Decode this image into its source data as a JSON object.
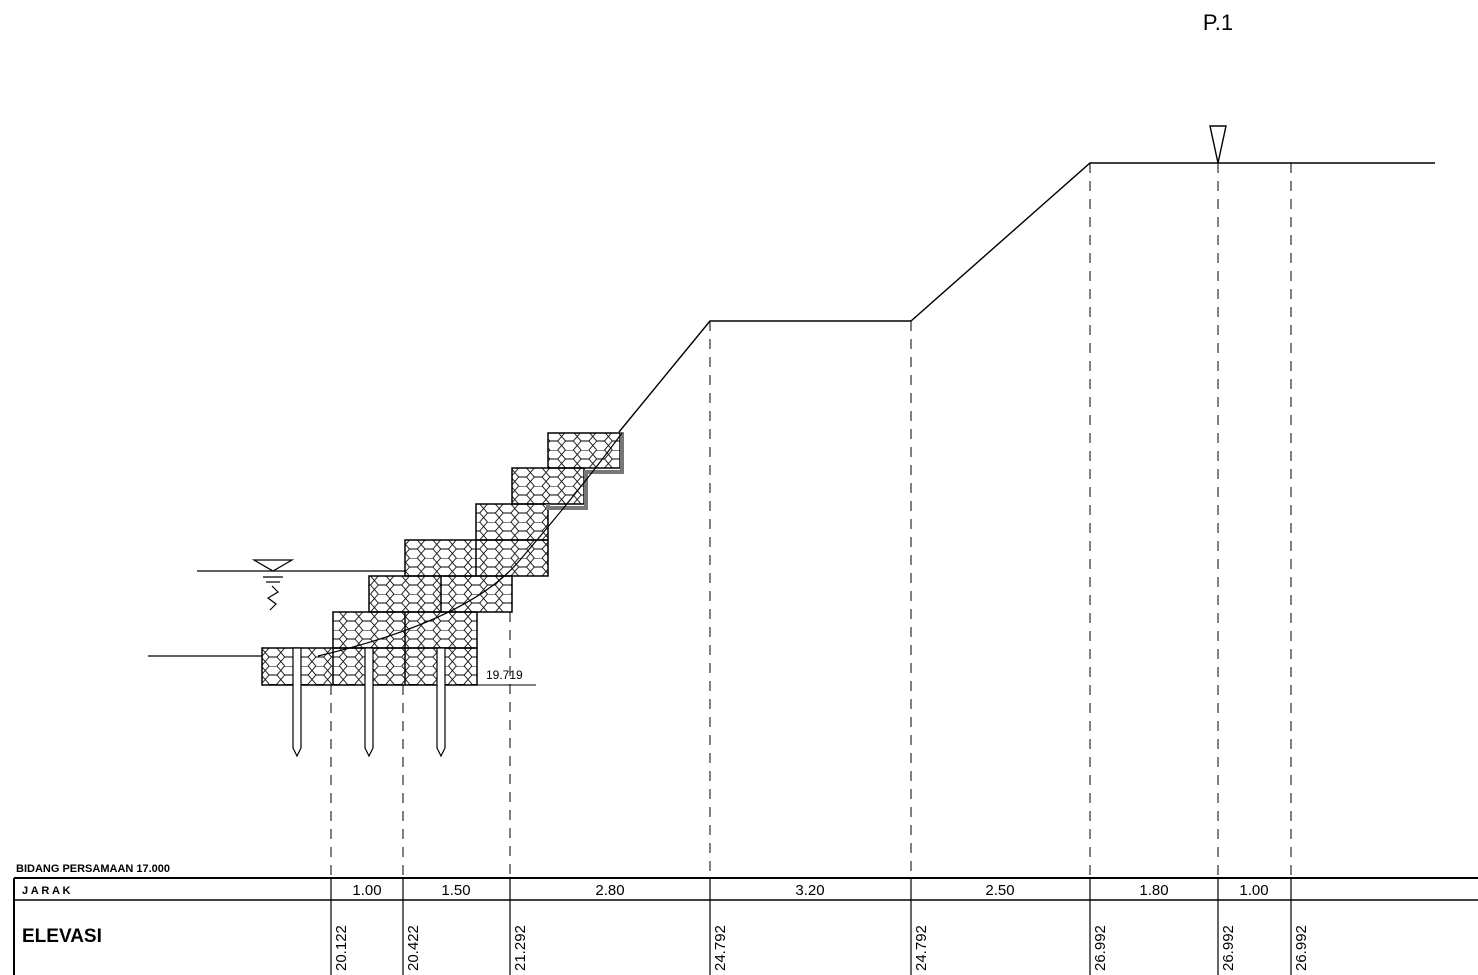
{
  "station_label": "P.1",
  "datum_label": "BIDANG PERSAMAAN 17.000",
  "row_distance_label": "J A R A K",
  "row_elevation_label": "ELEVASI",
  "base_elevation_label": "19.719",
  "distances": [
    "1.00",
    "1.50",
    "2.80",
    "3.20",
    "2.50",
    "1.80",
    "1.00"
  ],
  "elevations": [
    "20.122",
    "20.422",
    "21.292",
    "24.792",
    "24.792",
    "26.992",
    "26.992",
    "26.992"
  ]
}
